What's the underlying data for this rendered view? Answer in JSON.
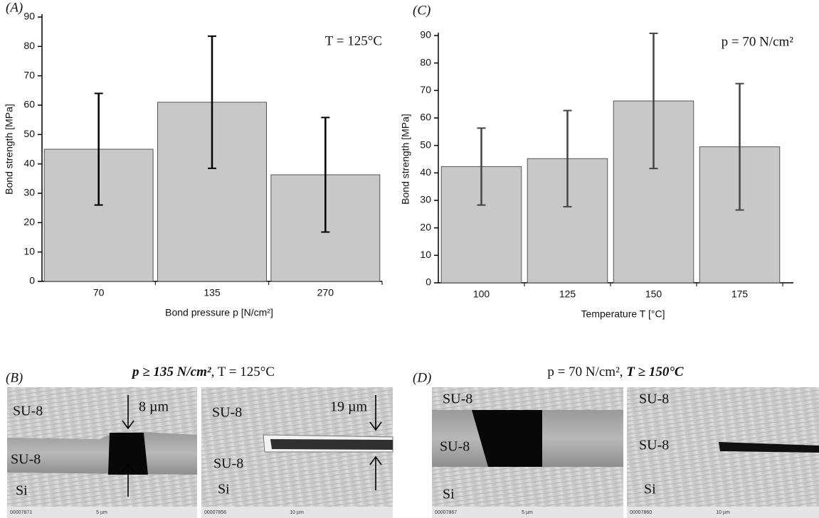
{
  "chart_data": [
    {
      "type": "bar",
      "panel": "(A)",
      "annotation": "T = 125°C",
      "xlabel": "Bond pressure p [N/cm²]",
      "ylabel": "Bond strength [MPa]",
      "categories": [
        "70",
        "135",
        "270"
      ],
      "values": [
        45,
        61,
        36.3
      ],
      "errors": [
        19,
        22.5,
        19.5
      ],
      "color": "#c8c8c8",
      "error_color": "#000000",
      "ylim": [
        0,
        90
      ],
      "yticks": [
        0,
        10,
        20,
        30,
        40,
        50,
        60,
        70,
        80,
        90
      ]
    },
    {
      "type": "bar",
      "panel": "(C)",
      "annotation": "p = 70 N/cm²",
      "xlabel": "Temperature T [°C]",
      "ylabel": "Bond strength [MPa]",
      "categories": [
        "100",
        "125",
        "150",
        "175"
      ],
      "values": [
        42.3,
        45.2,
        66.2,
        49.5
      ],
      "errors": [
        14,
        17.5,
        24.6,
        23
      ],
      "color": "#c8c8c8",
      "error_color": "#444444",
      "ylim": [
        0,
        90
      ],
      "yticks": [
        0,
        10,
        20,
        30,
        40,
        50,
        60,
        70,
        80,
        90
      ]
    }
  ],
  "sem_panels": [
    {
      "label": "(B)",
      "caption": [
        "p ≥ 135 N/cm²",
        ", T = 125°C"
      ],
      "images": [
        {
          "labels": [
            "SU-8",
            "SU-8",
            "Si",
            "8 µm"
          ],
          "code": "00007871",
          "scale": "5 µm"
        },
        {
          "labels": [
            "SU-8",
            "SU-8",
            "Si",
            "19 µm"
          ],
          "code": "00007856",
          "scale": "10 µm"
        }
      ]
    },
    {
      "label": "(D)",
      "caption": [
        "p = 70 N/cm², ",
        "T ≥ 150°C"
      ],
      "images": [
        {
          "labels": [
            "SU-8",
            "SU-8",
            "Si"
          ],
          "code": "00007867",
          "scale": "5 µm"
        },
        {
          "labels": [
            "SU-8",
            "SU-8",
            "Si"
          ],
          "code": "00007860",
          "scale": "10 µm"
        }
      ]
    }
  ]
}
